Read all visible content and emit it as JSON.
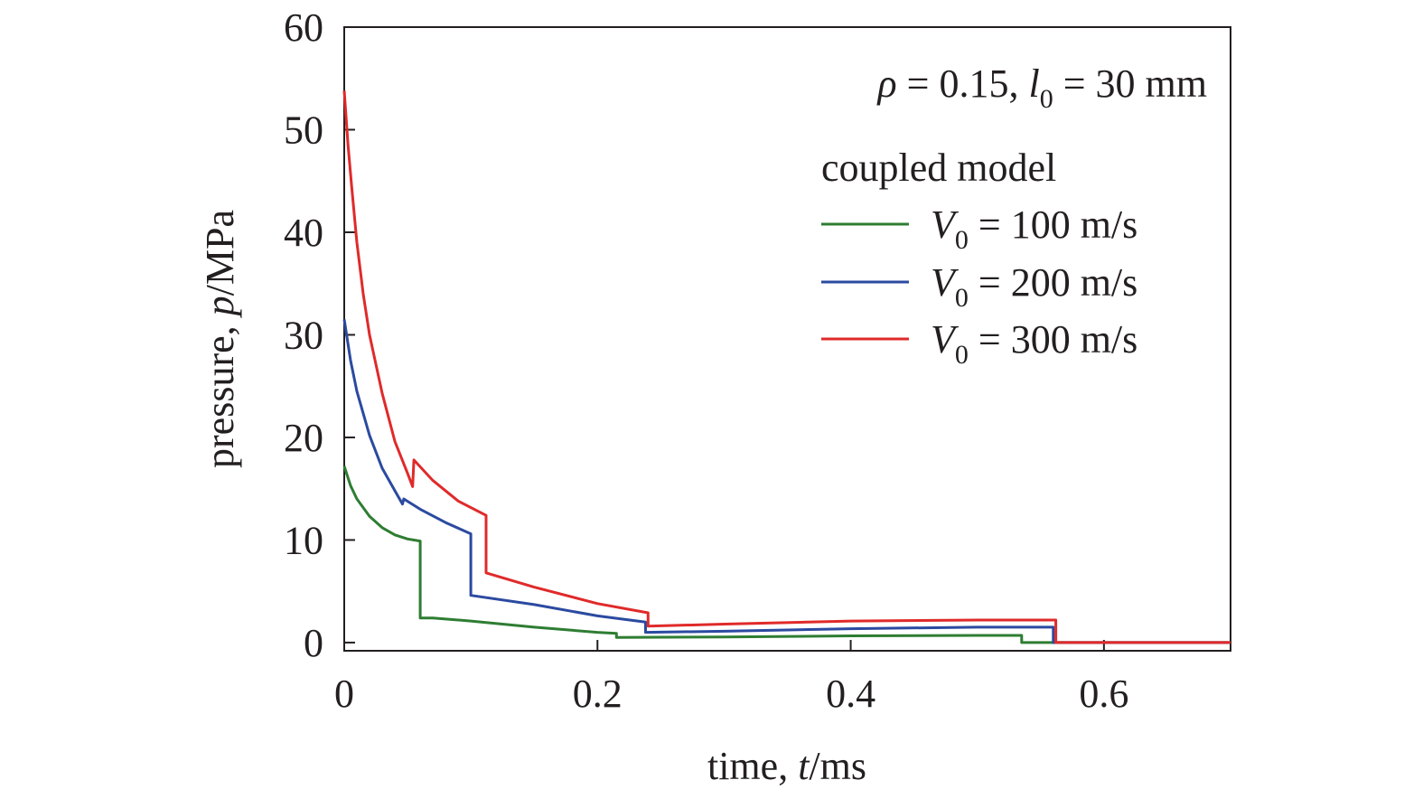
{
  "chart_data": {
    "type": "line",
    "xlabel": {
      "prefix": "time, ",
      "var": "t",
      "unit": "/ms"
    },
    "ylabel": {
      "prefix": "pressure, ",
      "var": "p",
      "unit": "/MPa"
    },
    "xlim": [
      0,
      0.7
    ],
    "ylim": [
      -0.8,
      60
    ],
    "xticks": [
      0,
      0.2,
      0.4,
      0.6
    ],
    "xtick_labels": [
      "0",
      "0.2",
      "0.4",
      "0.6"
    ],
    "yticks": [
      0,
      10,
      20,
      30,
      40,
      50,
      60
    ],
    "ytick_labels": [
      "0",
      "10",
      "20",
      "30",
      "40",
      "50",
      "60"
    ],
    "grid": false,
    "legend_position": "top-right",
    "annotation": {
      "rho_symbol": "ρ",
      "rho_text": " = 0.15, ",
      "l_symbol": "l",
      "l_sub": "0",
      "l_text": " = 30 mm"
    },
    "legend_title": "coupled model",
    "series": [
      {
        "name": "V0 = 100 m/s",
        "label_var": "V",
        "label_sub": "0",
        "label_text": " = 100 m/s",
        "color": "#2e7d32",
        "points": [
          [
            0,
            17.2
          ],
          [
            0.005,
            15.3
          ],
          [
            0.01,
            14.0
          ],
          [
            0.02,
            12.3
          ],
          [
            0.03,
            11.2
          ],
          [
            0.04,
            10.5
          ],
          [
            0.05,
            10.1
          ],
          [
            0.06,
            9.9
          ],
          [
            0.06,
            2.4
          ],
          [
            0.07,
            2.4
          ],
          [
            0.1,
            2.1
          ],
          [
            0.15,
            1.5
          ],
          [
            0.2,
            1.0
          ],
          [
            0.215,
            0.9
          ],
          [
            0.215,
            0.5
          ],
          [
            0.3,
            0.55
          ],
          [
            0.4,
            0.65
          ],
          [
            0.5,
            0.7
          ],
          [
            0.535,
            0.7
          ],
          [
            0.535,
            0.0
          ],
          [
            0.7,
            0.0
          ]
        ]
      },
      {
        "name": "V0 = 200 m/s",
        "label_var": "V",
        "label_sub": "0",
        "label_text": " = 200 m/s",
        "color": "#2b4aa0",
        "points": [
          [
            0,
            31.5
          ],
          [
            0.005,
            27.5
          ],
          [
            0.01,
            24.5
          ],
          [
            0.02,
            20.2
          ],
          [
            0.03,
            17.0
          ],
          [
            0.04,
            14.8
          ],
          [
            0.046,
            13.5
          ],
          [
            0.047,
            14.0
          ],
          [
            0.06,
            13.0
          ],
          [
            0.08,
            11.7
          ],
          [
            0.1,
            10.6
          ],
          [
            0.1,
            4.6
          ],
          [
            0.15,
            3.7
          ],
          [
            0.2,
            2.6
          ],
          [
            0.238,
            2.0
          ],
          [
            0.238,
            1.0
          ],
          [
            0.3,
            1.1
          ],
          [
            0.4,
            1.35
          ],
          [
            0.5,
            1.5
          ],
          [
            0.56,
            1.5
          ],
          [
            0.56,
            0.0
          ],
          [
            0.7,
            0.0
          ]
        ]
      },
      {
        "name": "V0 = 300 m/s",
        "label_var": "V",
        "label_sub": "0",
        "label_text": " = 300 m/s",
        "color": "#e02a2a",
        "points": [
          [
            0,
            53.8
          ],
          [
            0.003,
            48.5
          ],
          [
            0.006,
            44.3
          ],
          [
            0.01,
            39.0
          ],
          [
            0.015,
            34.0
          ],
          [
            0.02,
            30.0
          ],
          [
            0.03,
            24.3
          ],
          [
            0.04,
            19.6
          ],
          [
            0.05,
            16.5
          ],
          [
            0.054,
            15.2
          ],
          [
            0.055,
            17.8
          ],
          [
            0.07,
            15.8
          ],
          [
            0.09,
            13.8
          ],
          [
            0.112,
            12.4
          ],
          [
            0.112,
            6.8
          ],
          [
            0.15,
            5.4
          ],
          [
            0.2,
            3.8
          ],
          [
            0.24,
            2.9
          ],
          [
            0.24,
            1.6
          ],
          [
            0.3,
            1.8
          ],
          [
            0.4,
            2.1
          ],
          [
            0.5,
            2.2
          ],
          [
            0.562,
            2.2
          ],
          [
            0.562,
            0.0
          ],
          [
            0.7,
            0.0
          ]
        ]
      }
    ]
  }
}
